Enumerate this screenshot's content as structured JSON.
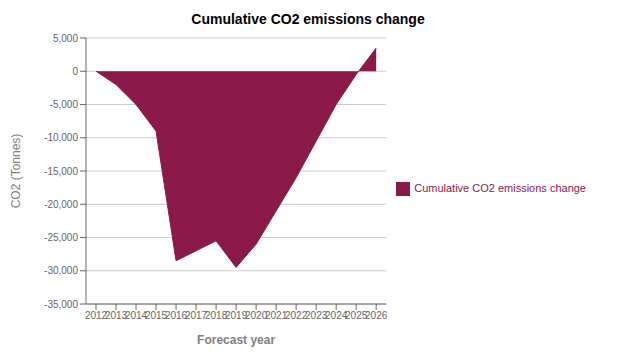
{
  "chart_data": {
    "type": "area",
    "title": "Cumulative CO2 emissions change",
    "xlabel": "Forecast year",
    "ylabel": "CO2 (Tonnes)",
    "x": [
      2012,
      2013,
      2014,
      2015,
      2016,
      2017,
      2018,
      2019,
      2020,
      2021,
      2022,
      2023,
      2024,
      2025,
      2026
    ],
    "series": [
      {
        "name": "Cumulative CO2 emissions change",
        "color": "#8B1A4A",
        "values": [
          0,
          -2000,
          -5000,
          -9000,
          -28500,
          -27000,
          -25500,
          -29500,
          -26000,
          -21000,
          -16000,
          -10500,
          -5000,
          -500,
          3500
        ]
      }
    ],
    "xlim": [
      2011.5,
      2026.5
    ],
    "xticks": [
      2012,
      2013,
      2014,
      2015,
      2016,
      2017,
      2018,
      2019,
      2020,
      2021,
      2022,
      2023,
      2024,
      2025,
      2026
    ],
    "ylim": [
      -35000,
      5000
    ],
    "yticks": [
      {
        "value": 5000,
        "label": "5,000"
      },
      0,
      {
        "value": -5000,
        "label": "-5,000"
      },
      {
        "value": -10000,
        "label": "-10,000"
      },
      {
        "value": -15000,
        "label": "-15,000"
      },
      {
        "value": -20000,
        "label": "-20,000"
      },
      {
        "value": -25000,
        "label": "-25,000"
      },
      {
        "value": -30000,
        "label": "-30,000"
      },
      {
        "value": -35000,
        "label": "-35,000"
      }
    ],
    "grid": "y",
    "legend": "right"
  }
}
